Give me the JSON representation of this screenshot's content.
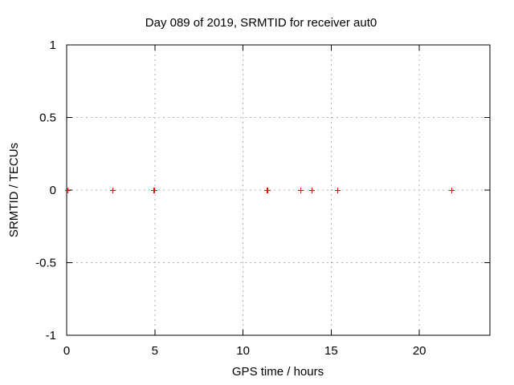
{
  "window": {
    "title": "Day 089 of 2019, SRMTID for receiver aut0"
  },
  "colors": {
    "background": "#ffffff",
    "border": "#000000",
    "grid": "#b0b0b0",
    "marker": "#ff0000",
    "text": "#000000"
  },
  "chart_data": {
    "type": "scatter",
    "title": "Day 089 of 2019, SRMTID for receiver aut0",
    "xlabel": "GPS time / hours",
    "ylabel": "SRMTID / TECUs",
    "xlim": [
      0,
      24
    ],
    "ylim": [
      -1,
      1
    ],
    "xticks": [
      0,
      5,
      10,
      15,
      20
    ],
    "xticklabels": [
      "0",
      "5",
      "10",
      "15",
      "20"
    ],
    "yticks": [
      -1,
      -0.5,
      0,
      0.5,
      1
    ],
    "yticklabels": [
      "-1",
      "-0.5",
      "0",
      "0.5",
      "1"
    ],
    "grid": true,
    "grid_style": "dotted",
    "legend": "none",
    "marker_style": "plus",
    "series": [
      {
        "name": "SRMTID",
        "color": "#ff0000",
        "points": [
          {
            "x": 0.05,
            "y": 0
          },
          {
            "x": 2.6,
            "y": 0
          },
          {
            "x": 4.9,
            "y": 0
          },
          {
            "x": 4.95,
            "y": 0
          },
          {
            "x": 11.35,
            "y": 0
          },
          {
            "x": 11.4,
            "y": 0
          },
          {
            "x": 13.25,
            "y": 0
          },
          {
            "x": 13.9,
            "y": 0
          },
          {
            "x": 15.35,
            "y": 0
          },
          {
            "x": 21.8,
            "y": 0
          }
        ]
      }
    ]
  }
}
